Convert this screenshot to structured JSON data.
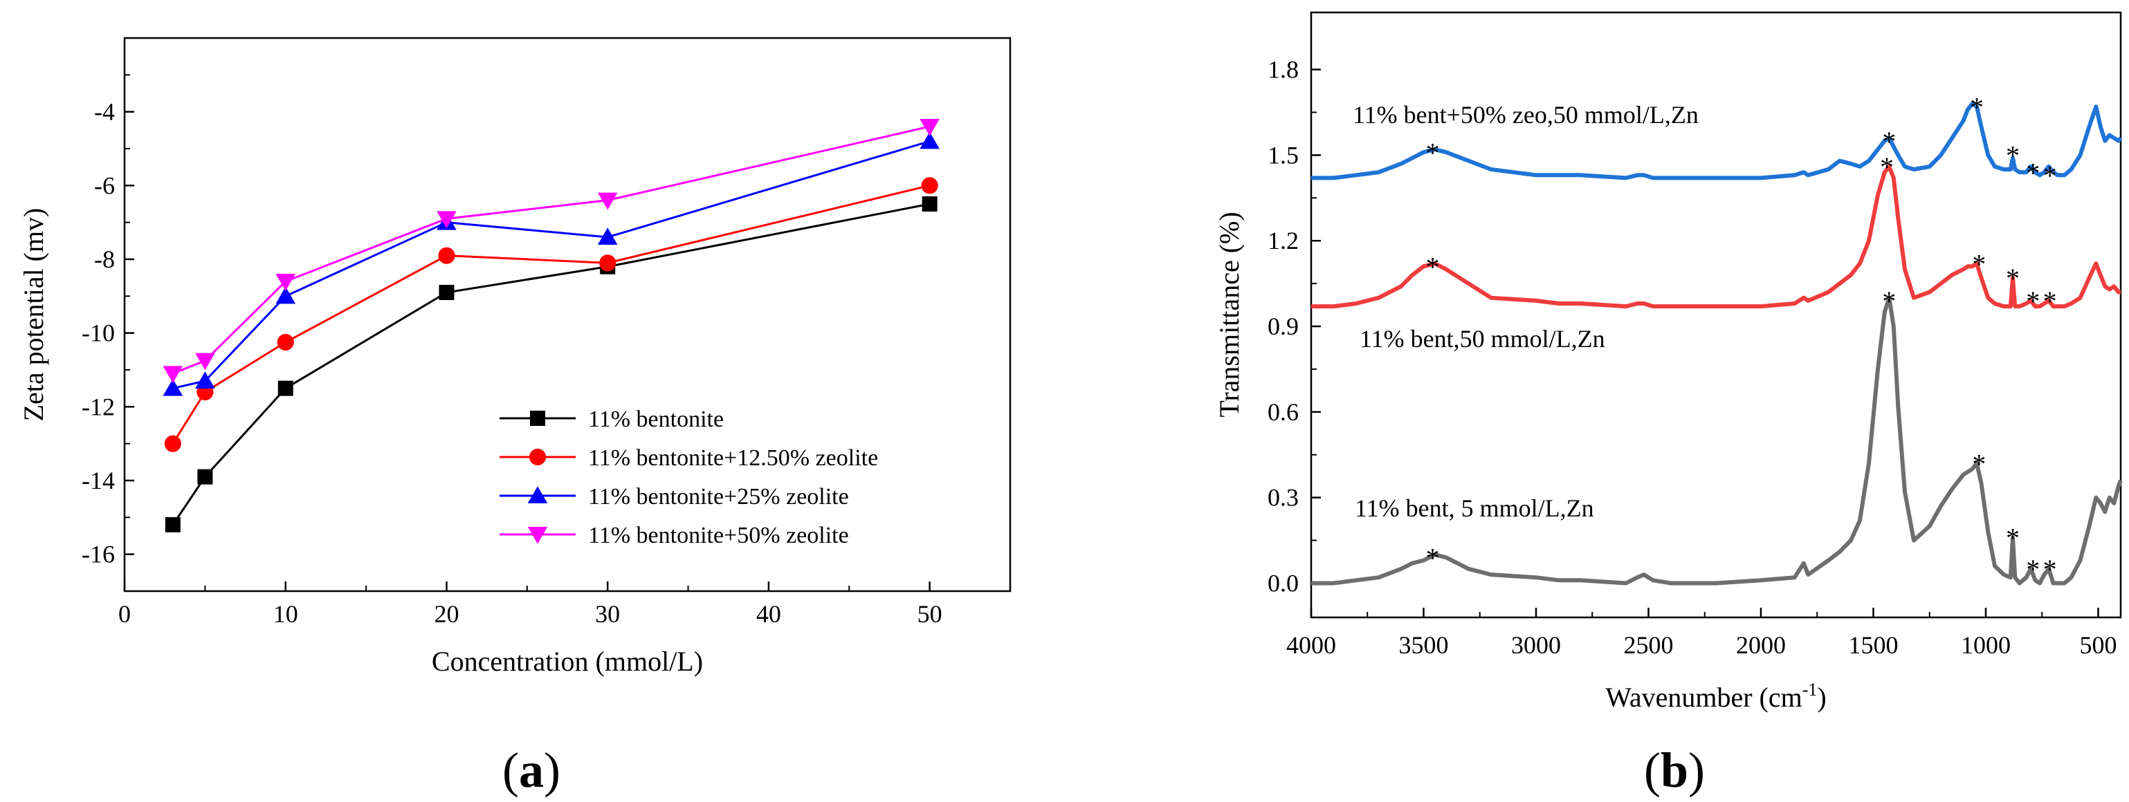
{
  "chart_data": [
    {
      "panel": "(a)",
      "panel_letter": "a",
      "type": "line",
      "xlabel": "Concentration (mmol/L)",
      "ylabel": "Zeta potential (mv)",
      "xlim": [
        0,
        55
      ],
      "ylim": [
        -17,
        -2
      ],
      "xticks": [
        0,
        10,
        20,
        30,
        40,
        50
      ],
      "yticks": [
        -16,
        -14,
        -12,
        -10,
        -8,
        -6,
        -4
      ],
      "grid": false,
      "legend_position": "bottom-right",
      "series": [
        {
          "name": "11% bentonite",
          "color": "#000000",
          "marker": "square",
          "x": [
            3,
            5,
            10,
            20,
            30,
            50
          ],
          "y": [
            -15.2,
            -13.9,
            -11.5,
            -8.9,
            -8.2,
            -6.5
          ]
        },
        {
          "name": "11% bentonite+12.50% zeolite",
          "color": "#ff0000",
          "marker": "circle",
          "x": [
            3,
            5,
            10,
            20,
            30,
            50
          ],
          "y": [
            -13.0,
            -11.6,
            -10.25,
            -7.9,
            -8.1,
            -6.0
          ]
        },
        {
          "name": "11% bentonite+25% zeolite",
          "color": "#0000ff",
          "marker": "triangle-up",
          "x": [
            3,
            5,
            10,
            20,
            30,
            50
          ],
          "y": [
            -11.5,
            -11.3,
            -9.0,
            -7.0,
            -7.4,
            -4.8
          ]
        },
        {
          "name": "11% bentonite+50% zeolite",
          "color": "#ff00ff",
          "marker": "triangle-down",
          "x": [
            3,
            5,
            10,
            20,
            30,
            50
          ],
          "y": [
            -11.1,
            -10.75,
            -8.6,
            -6.9,
            -6.4,
            -4.4
          ]
        }
      ]
    },
    {
      "panel": "(b)",
      "panel_letter": "b",
      "type": "line",
      "xlabel_main": "Wavenumber (cm",
      "xlabel_sup": "-1",
      "xlabel_end": ")",
      "ylabel": "Transmittance (%)",
      "xlim": [
        4000,
        400
      ],
      "ylim": [
        -0.12,
        2.0
      ],
      "xticks": [
        4000,
        3500,
        3000,
        2500,
        2000,
        1500,
        1000,
        500
      ],
      "yticks": [
        0.0,
        0.3,
        0.6,
        0.9,
        1.2,
        1.5,
        1.8
      ],
      "ytick_labels": [
        "0.0",
        "0.3",
        "0.6",
        "0.9",
        "1.2",
        "1.5",
        "1.8"
      ],
      "grid": false,
      "series": [
        {
          "name": "11% bent, 5 mmol/L,Zn",
          "color": "#6e6e6e",
          "annotation": "11% bent, 5 mmol/L,Zn",
          "x": [
            4000,
            3900,
            3800,
            3700,
            3600,
            3550,
            3500,
            3450,
            3400,
            3300,
            3200,
            3000,
            2900,
            2800,
            2600,
            2550,
            2520,
            2480,
            2400,
            2200,
            2000,
            1850,
            1810,
            1790,
            1700,
            1650,
            1600,
            1560,
            1520,
            1480,
            1450,
            1430,
            1410,
            1390,
            1360,
            1320,
            1250,
            1200,
            1150,
            1100,
            1080,
            1060,
            1040,
            1020,
            990,
            960,
            920,
            890,
            880,
            870,
            850,
            820,
            800,
            780,
            760,
            740,
            720,
            700,
            680,
            650,
            620,
            580,
            540,
            510,
            490,
            470,
            450,
            430,
            410,
            400
          ],
          "y": [
            0.0,
            0.0,
            0.01,
            0.02,
            0.05,
            0.07,
            0.08,
            0.1,
            0.09,
            0.05,
            0.03,
            0.02,
            0.01,
            0.01,
            0.0,
            0.02,
            0.03,
            0.01,
            0.0,
            0.0,
            0.01,
            0.02,
            0.07,
            0.03,
            0.08,
            0.11,
            0.15,
            0.22,
            0.42,
            0.75,
            0.95,
            1.0,
            0.9,
            0.62,
            0.32,
            0.15,
            0.2,
            0.27,
            0.33,
            0.38,
            0.39,
            0.4,
            0.42,
            0.35,
            0.18,
            0.06,
            0.03,
            0.02,
            0.16,
            0.02,
            0.0,
            0.02,
            0.05,
            0.01,
            0.0,
            0.03,
            0.05,
            0.0,
            0.0,
            0.0,
            0.02,
            0.08,
            0.2,
            0.3,
            0.28,
            0.25,
            0.3,
            0.28,
            0.34,
            0.36
          ]
        },
        {
          "name": "11% bent,50 mmol/L,Zn",
          "color": "#f03c3c",
          "annotation": "11% bent,50 mmol/L,Zn",
          "x": [
            4000,
            3900,
            3800,
            3700,
            3600,
            3550,
            3500,
            3450,
            3400,
            3300,
            3200,
            3000,
            2900,
            2800,
            2600,
            2550,
            2520,
            2480,
            2400,
            2200,
            2000,
            1850,
            1810,
            1790,
            1700,
            1650,
            1600,
            1560,
            1520,
            1480,
            1450,
            1430,
            1410,
            1390,
            1360,
            1320,
            1250,
            1200,
            1150,
            1100,
            1080,
            1060,
            1040,
            1020,
            990,
            960,
            920,
            890,
            880,
            870,
            850,
            820,
            800,
            780,
            760,
            740,
            720,
            700,
            680,
            650,
            620,
            580,
            540,
            510,
            490,
            470,
            450,
            430,
            410,
            400
          ],
          "y": [
            0.97,
            0.97,
            0.98,
            1.0,
            1.04,
            1.08,
            1.11,
            1.12,
            1.1,
            1.05,
            1.0,
            0.99,
            0.98,
            0.98,
            0.97,
            0.98,
            0.98,
            0.97,
            0.97,
            0.97,
            0.97,
            0.98,
            1.0,
            0.99,
            1.02,
            1.05,
            1.08,
            1.12,
            1.2,
            1.36,
            1.44,
            1.46,
            1.42,
            1.28,
            1.1,
            1.0,
            1.02,
            1.05,
            1.08,
            1.1,
            1.11,
            1.11,
            1.12,
            1.07,
            1.0,
            0.98,
            0.97,
            0.97,
            1.07,
            0.97,
            0.97,
            0.98,
            0.99,
            0.97,
            0.97,
            0.98,
            0.99,
            0.97,
            0.97,
            0.97,
            0.98,
            1.0,
            1.07,
            1.12,
            1.08,
            1.04,
            1.03,
            1.04,
            1.02,
            1.02
          ]
        },
        {
          "name": "11% bent+50% zeo,50 mmol/L,Zn",
          "color": "#1f74d6",
          "annotation": "11% bent+50% zeo,50 mmol/L,Zn",
          "x": [
            4000,
            3900,
            3800,
            3700,
            3600,
            3550,
            3500,
            3450,
            3400,
            3300,
            3200,
            3000,
            2900,
            2800,
            2600,
            2550,
            2520,
            2480,
            2400,
            2200,
            2000,
            1850,
            1810,
            1790,
            1700,
            1650,
            1600,
            1560,
            1520,
            1480,
            1450,
            1430,
            1410,
            1390,
            1360,
            1320,
            1250,
            1200,
            1150,
            1100,
            1080,
            1060,
            1040,
            1020,
            990,
            960,
            920,
            890,
            880,
            870,
            850,
            820,
            800,
            780,
            760,
            740,
            720,
            700,
            680,
            650,
            620,
            580,
            540,
            510,
            490,
            470,
            450,
            430,
            410,
            400
          ],
          "y": [
            1.42,
            1.42,
            1.43,
            1.44,
            1.47,
            1.49,
            1.51,
            1.52,
            1.51,
            1.48,
            1.45,
            1.43,
            1.43,
            1.43,
            1.42,
            1.43,
            1.43,
            1.42,
            1.42,
            1.42,
            1.42,
            1.43,
            1.44,
            1.43,
            1.45,
            1.48,
            1.47,
            1.46,
            1.48,
            1.52,
            1.55,
            1.56,
            1.53,
            1.5,
            1.46,
            1.45,
            1.46,
            1.5,
            1.56,
            1.62,
            1.66,
            1.68,
            1.67,
            1.6,
            1.5,
            1.46,
            1.45,
            1.45,
            1.49,
            1.45,
            1.44,
            1.44,
            1.46,
            1.44,
            1.43,
            1.44,
            1.46,
            1.44,
            1.43,
            1.43,
            1.45,
            1.5,
            1.6,
            1.67,
            1.6,
            1.55,
            1.57,
            1.56,
            1.55,
            1.56
          ]
        }
      ],
      "asterisk_text": "*",
      "asterisks": [
        {
          "x": 3460,
          "y": 1.5
        },
        {
          "x": 1430,
          "y": 1.54
        },
        {
          "x": 1040,
          "y": 1.66
        },
        {
          "x": 880,
          "y": 1.49
        },
        {
          "x": 790,
          "y": 1.43
        },
        {
          "x": 715,
          "y": 1.42
        },
        {
          "x": 3460,
          "y": 1.1
        },
        {
          "x": 1440,
          "y": 1.45
        },
        {
          "x": 1030,
          "y": 1.11
        },
        {
          "x": 880,
          "y": 1.06
        },
        {
          "x": 790,
          "y": 0.98
        },
        {
          "x": 715,
          "y": 0.98
        },
        {
          "x": 3460,
          "y": 0.08
        },
        {
          "x": 1430,
          "y": 0.98
        },
        {
          "x": 1030,
          "y": 0.41
        },
        {
          "x": 880,
          "y": 0.15
        },
        {
          "x": 790,
          "y": 0.04
        },
        {
          "x": 715,
          "y": 0.04
        }
      ]
    }
  ]
}
